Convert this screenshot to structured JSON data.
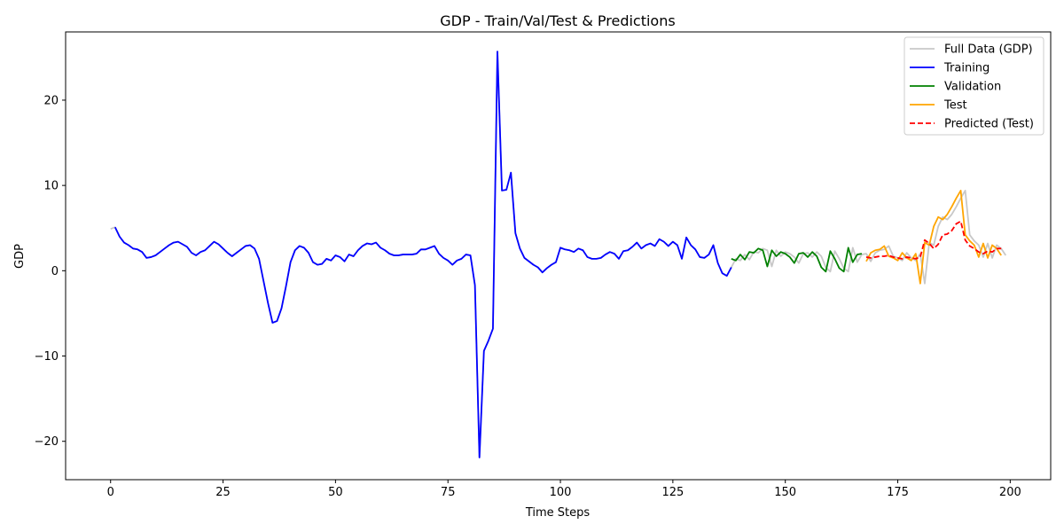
{
  "chart_data": {
    "type": "line",
    "title": "GDP - Train/Val/Test & Predictions",
    "xlabel": "Time Steps",
    "ylabel": "GDP",
    "xlim": [
      -10,
      209
    ],
    "ylim": [
      -24.5,
      28.0
    ],
    "xticks": [
      0,
      25,
      50,
      75,
      100,
      125,
      150,
      175,
      200
    ],
    "yticks": [
      -20,
      -10,
      0,
      10,
      20
    ],
    "grid": false,
    "legend_position": "top-right",
    "series": [
      {
        "name": "Full Data (GDP)",
        "color": "#c8c8c8",
        "style": "solid",
        "x_start": 0,
        "values": [
          4.9,
          5.1,
          4.0,
          3.3,
          3.0,
          2.6,
          2.5,
          2.2,
          1.5,
          1.6,
          1.8,
          2.2,
          2.6,
          3.0,
          3.3,
          3.4,
          3.1,
          2.8,
          2.1,
          1.8,
          2.2,
          2.4,
          2.9,
          3.4,
          3.1,
          2.6,
          2.1,
          1.7,
          2.1,
          2.5,
          2.9,
          3.0,
          2.6,
          1.4,
          -1.2,
          -3.8,
          -6.1,
          -5.9,
          -4.4,
          -1.8,
          1.0,
          2.4,
          2.9,
          2.7,
          2.1,
          1.0,
          0.7,
          0.8,
          1.4,
          1.2,
          1.8,
          1.6,
          1.1,
          1.9,
          1.7,
          2.4,
          2.9,
          3.2,
          3.1,
          3.3,
          2.7,
          2.4,
          2.0,
          1.8,
          1.8,
          1.9,
          1.9,
          1.9,
          2.0,
          2.5,
          2.5,
          2.7,
          2.9,
          2.0,
          1.5,
          1.2,
          0.7,
          1.2,
          1.4,
          1.9,
          1.8,
          -1.7,
          -21.9,
          -9.4,
          -8.2,
          -6.8,
          25.7,
          9.4,
          9.5,
          11.5,
          4.4,
          2.6,
          1.5,
          1.1,
          0.7,
          0.4,
          -0.2,
          0.3,
          0.7,
          1.0,
          2.7,
          2.5,
          2.4,
          2.2,
          2.6,
          2.4,
          1.6,
          1.4,
          1.4,
          1.5,
          1.9,
          2.2,
          2.0,
          1.4,
          2.3,
          2.4,
          2.8,
          3.3,
          2.6,
          3.0,
          3.2,
          2.9,
          3.7,
          3.4,
          2.9,
          3.4,
          3.0,
          1.4,
          3.9,
          3.0,
          2.5,
          1.6,
          1.5,
          1.9,
          3.0,
          0.9,
          -0.3,
          -0.6,
          0.4,
          1.4,
          1.2,
          1.9,
          1.3,
          2.2,
          2.1,
          2.6,
          2.4,
          0.5,
          2.4,
          1.7,
          2.2,
          2.0,
          1.6,
          0.9,
          2.0,
          2.1,
          1.6,
          2.2,
          1.7,
          0.4,
          -0.1,
          2.3,
          1.4,
          0.3,
          -0.1,
          2.7,
          1.0,
          1.9,
          2.0,
          1.1,
          2.1,
          2.4,
          2.5,
          2.9,
          1.7,
          1.5,
          1.2,
          2.1,
          1.5,
          1.2,
          2.0,
          -1.5,
          3.3,
          3.0,
          5.2,
          6.3,
          6.0,
          6.6,
          7.5,
          8.5,
          9.4,
          4.2,
          3.5,
          3.0,
          1.6,
          3.2,
          1.5,
          3.0,
          2.6,
          1.8
        ]
      },
      {
        "name": "Training",
        "color": "#0000ff",
        "style": "solid",
        "x_start": 1,
        "values": [
          5.1,
          4.0,
          3.3,
          3.0,
          2.6,
          2.5,
          2.2,
          1.5,
          1.6,
          1.8,
          2.2,
          2.6,
          3.0,
          3.3,
          3.4,
          3.1,
          2.8,
          2.1,
          1.8,
          2.2,
          2.4,
          2.9,
          3.4,
          3.1,
          2.6,
          2.1,
          1.7,
          2.1,
          2.5,
          2.9,
          3.0,
          2.6,
          1.4,
          -1.2,
          -3.8,
          -6.1,
          -5.9,
          -4.4,
          -1.8,
          1.0,
          2.4,
          2.9,
          2.7,
          2.1,
          1.0,
          0.7,
          0.8,
          1.4,
          1.2,
          1.8,
          1.6,
          1.1,
          1.9,
          1.7,
          2.4,
          2.9,
          3.2,
          3.1,
          3.3,
          2.7,
          2.4,
          2.0,
          1.8,
          1.8,
          1.9,
          1.9,
          1.9,
          2.0,
          2.5,
          2.5,
          2.7,
          2.9,
          2.0,
          1.5,
          1.2,
          0.7,
          1.2,
          1.4,
          1.9,
          1.8,
          -1.7,
          -21.9,
          -9.4,
          -8.2,
          -6.8,
          25.7,
          9.4,
          9.5,
          11.5,
          4.4,
          2.6,
          1.5,
          1.1,
          0.7,
          0.4,
          -0.2,
          0.3,
          0.7,
          1.0,
          2.7,
          2.5,
          2.4,
          2.2,
          2.6,
          2.4,
          1.6,
          1.4,
          1.4,
          1.5,
          1.9,
          2.2,
          2.0,
          1.4,
          2.3,
          2.4,
          2.8,
          3.3,
          2.6,
          3.0,
          3.2,
          2.9,
          3.7,
          3.4,
          2.9,
          3.4,
          3.0,
          1.4,
          3.9,
          3.0,
          2.5,
          1.6,
          1.5,
          1.9,
          3.0,
          0.9,
          -0.3,
          -0.6,
          0.4
        ]
      },
      {
        "name": "Validation",
        "color": "#008000",
        "style": "solid",
        "x_start": 138,
        "values": [
          1.4,
          1.2,
          1.9,
          1.3,
          2.2,
          2.1,
          2.6,
          2.4,
          0.5,
          2.4,
          1.7,
          2.2,
          2.0,
          1.6,
          0.9,
          2.0,
          2.1,
          1.6,
          2.2,
          1.7,
          0.4,
          -0.1,
          2.3,
          1.4,
          0.3,
          -0.1,
          2.7,
          1.0,
          1.9,
          2.0
        ]
      },
      {
        "name": "Test",
        "color": "#ffa500",
        "style": "solid",
        "x_start": 168,
        "values": [
          1.1,
          2.1,
          2.4,
          2.5,
          2.9,
          1.7,
          1.5,
          1.2,
          2.1,
          1.5,
          1.2,
          2.0,
          -1.5,
          3.3,
          3.0,
          5.2,
          6.3,
          6.0,
          6.6,
          7.5,
          8.5,
          9.4,
          4.2,
          3.5,
          3.0,
          1.6,
          3.2,
          1.5,
          3.0,
          2.6,
          1.8
        ]
      },
      {
        "name": "Predicted (Test)",
        "color": "#ff0000",
        "style": "dashed",
        "x_start": 168,
        "values": [
          1.6,
          1.5,
          1.6,
          1.7,
          1.7,
          1.8,
          1.6,
          1.5,
          1.4,
          1.6,
          1.5,
          1.4,
          1.6,
          3.6,
          3.2,
          2.6,
          3.1,
          4.2,
          4.3,
          4.7,
          5.5,
          5.8,
          3.6,
          2.9,
          2.6,
          2.2,
          2.0,
          2.3,
          2.2,
          2.6,
          2.6
        ]
      }
    ]
  }
}
